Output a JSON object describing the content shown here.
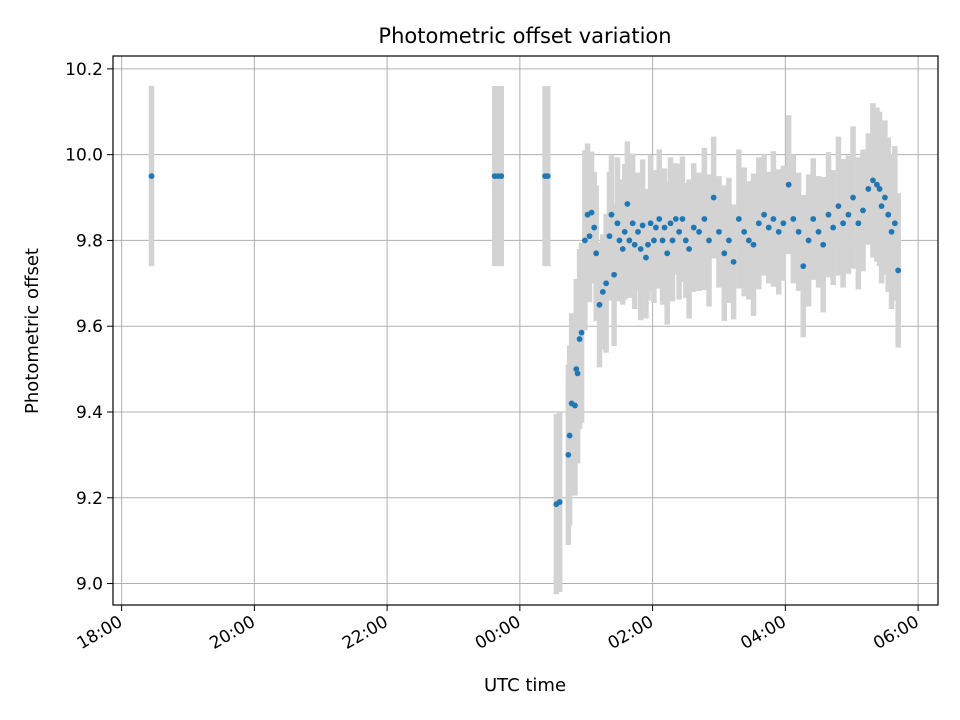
{
  "chart_data": {
    "type": "scatter",
    "title": "Photometric offset variation",
    "xlabel": "UTC time",
    "ylabel": "Photometric offset",
    "x_ticks": [
      "18:00",
      "20:00",
      "22:00",
      "00:00",
      "02:00",
      "04:00",
      "06:00"
    ],
    "y_ticks": [
      "9.0",
      "9.2",
      "9.4",
      "9.6",
      "9.8",
      "10.0",
      "10.2"
    ],
    "xlim_hours": [
      17.87,
      30.3
    ],
    "ylim": [
      8.95,
      10.23
    ],
    "grid": true,
    "marker_color": "#1f77b4",
    "errorbar_color": "#d3d3d3",
    "series": [
      {
        "x_hours": [
          18.45,
          23.62,
          23.67,
          23.72,
          24.38,
          24.42,
          24.55,
          24.6,
          24.73,
          24.75,
          24.78,
          24.83,
          24.85,
          24.87,
          24.9,
          24.93,
          24.98,
          25.02,
          25.05,
          25.08,
          25.12,
          25.15,
          25.2,
          25.25,
          25.3,
          25.35,
          25.38,
          25.42,
          25.47,
          25.5,
          25.55,
          25.58,
          25.62,
          25.65,
          25.7,
          25.73,
          25.78,
          25.82,
          25.85,
          25.9,
          25.93,
          25.97,
          26.02,
          26.05,
          26.1,
          26.15,
          26.18,
          26.22,
          26.27,
          26.3,
          26.35,
          26.4,
          26.45,
          26.5,
          26.55,
          26.62,
          26.7,
          26.78,
          26.85,
          26.92,
          27.0,
          27.08,
          27.15,
          27.22,
          27.3,
          27.38,
          27.45,
          27.52,
          27.6,
          27.68,
          27.75,
          27.82,
          27.9,
          27.97,
          28.05,
          28.12,
          28.2,
          28.27,
          28.35,
          28.42,
          28.5,
          28.57,
          28.65,
          28.72,
          28.8,
          28.87,
          28.95,
          29.02,
          29.1,
          29.17,
          29.25,
          29.32,
          29.38,
          29.42,
          29.45,
          29.5,
          29.55,
          29.6,
          29.65,
          29.7
        ],
        "y": [
          9.95,
          9.95,
          9.95,
          9.95,
          9.95,
          9.95,
          9.185,
          9.19,
          9.3,
          9.345,
          9.42,
          9.415,
          9.5,
          9.49,
          9.57,
          9.585,
          9.8,
          9.86,
          9.81,
          9.865,
          9.83,
          9.77,
          9.65,
          9.68,
          9.7,
          9.81,
          9.86,
          9.72,
          9.84,
          9.8,
          9.78,
          9.82,
          9.885,
          9.8,
          9.84,
          9.79,
          9.82,
          9.78,
          9.835,
          9.76,
          9.79,
          9.84,
          9.8,
          9.83,
          9.85,
          9.8,
          9.83,
          9.77,
          9.84,
          9.8,
          9.85,
          9.82,
          9.85,
          9.8,
          9.78,
          9.83,
          9.82,
          9.85,
          9.8,
          9.9,
          9.82,
          9.77,
          9.8,
          9.75,
          9.85,
          9.82,
          9.8,
          9.79,
          9.84,
          9.86,
          9.83,
          9.85,
          9.82,
          9.84,
          9.93,
          9.85,
          9.82,
          9.74,
          9.8,
          9.85,
          9.82,
          9.79,
          9.86,
          9.83,
          9.88,
          9.84,
          9.86,
          9.9,
          9.84,
          9.87,
          9.92,
          9.94,
          9.93,
          9.92,
          9.88,
          9.9,
          9.86,
          9.82,
          9.84,
          9.73
        ]
      }
    ]
  }
}
